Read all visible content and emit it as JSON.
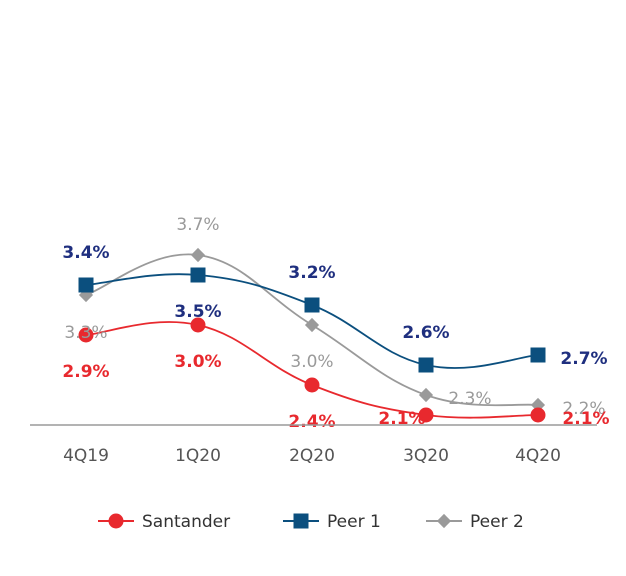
{
  "chart_data": {
    "type": "line",
    "categories": [
      "4Q19",
      "1Q20",
      "2Q20",
      "3Q20",
      "4Q20"
    ],
    "ylim": [
      1.8,
      4.0
    ],
    "grid": false,
    "legend_position": "bottom",
    "series": [
      {
        "name": "Santander",
        "values": [
          2.9,
          3.0,
          2.4,
          2.1,
          2.1
        ],
        "labels": [
          "2.9%",
          "3.0%",
          "2.4%",
          "2.1%",
          "2.1%"
        ],
        "color": "#e8292e",
        "marker": "circle",
        "bold": true
      },
      {
        "name": "Peer 1",
        "values": [
          3.4,
          3.5,
          3.2,
          2.6,
          2.7
        ],
        "labels": [
          "3.4%",
          "3.5%",
          "3.2%",
          "2.6%",
          "2.7%"
        ],
        "color": "#0b4f7e",
        "marker": "square",
        "label_color": "#1f2f7f",
        "bold": true
      },
      {
        "name": "Peer 2",
        "values": [
          3.3,
          3.7,
          3.0,
          2.3,
          2.2
        ],
        "labels": [
          "3.3%",
          "3.7%",
          "3.0%",
          "2.3%",
          "2.2%"
        ],
        "color": "#9a9a9a",
        "marker": "diamond",
        "bold": false
      }
    ]
  }
}
